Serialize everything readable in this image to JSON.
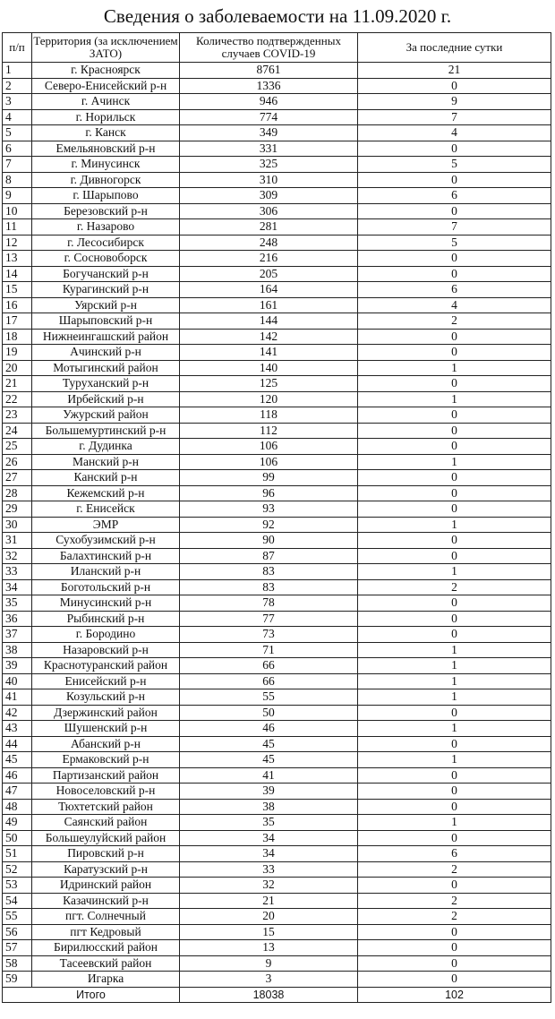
{
  "title": "Сведения о заболеваемости на 11.09.2020 г.",
  "headers": [
    "п/п",
    "Территория (за исключением ЗАТО)",
    "Количество подтвержденных случаев COVID-19",
    "За последние сутки"
  ],
  "rows": [
    [
      "1",
      "г. Красноярск",
      "8761",
      "21"
    ],
    [
      "2",
      "Северо-Енисейский р-н",
      "1336",
      "0"
    ],
    [
      "3",
      "г. Ачинск",
      "946",
      "9"
    ],
    [
      "4",
      "г. Норильск",
      "774",
      "7"
    ],
    [
      "5",
      "г. Канск",
      "349",
      "4"
    ],
    [
      "6",
      "Емельяновский р-н",
      "331",
      "0"
    ],
    [
      "7",
      "г. Минусинск",
      "325",
      "5"
    ],
    [
      "8",
      "г. Дивногорск",
      "310",
      "0"
    ],
    [
      "9",
      "г. Шарыпово",
      "309",
      "6"
    ],
    [
      "10",
      "Березовский р-н",
      "306",
      "0"
    ],
    [
      "11",
      "г. Назарово",
      "281",
      "7"
    ],
    [
      "12",
      "г. Лесосибирск",
      "248",
      "5"
    ],
    [
      "13",
      "г. Сосновоборск",
      "216",
      "0"
    ],
    [
      "14",
      "Богучанский р-н",
      "205",
      "0"
    ],
    [
      "15",
      "Курагинский р-н",
      "164",
      "6"
    ],
    [
      "16",
      "Уярский р-н",
      "161",
      "4"
    ],
    [
      "17",
      "Шарыповский р-н",
      "144",
      "2"
    ],
    [
      "18",
      "Нижнеингашский район",
      "142",
      "0"
    ],
    [
      "19",
      "Ачинский р-н",
      "141",
      "0"
    ],
    [
      "20",
      "Мотыгинский район",
      "140",
      "1"
    ],
    [
      "21",
      "Туруханский р-н",
      "125",
      "0"
    ],
    [
      "22",
      "Ирбейский р-н",
      "120",
      "1"
    ],
    [
      "23",
      "Ужурский район",
      "118",
      "0"
    ],
    [
      "24",
      "Большемуртинский р-н",
      "112",
      "0"
    ],
    [
      "25",
      "г. Дудинка",
      "106",
      "0"
    ],
    [
      "26",
      "Манский р-н",
      "106",
      "1"
    ],
    [
      "27",
      "Канский р-н",
      "99",
      "0"
    ],
    [
      "28",
      "Кежемский р-н",
      "96",
      "0"
    ],
    [
      "29",
      "г. Енисейск",
      "93",
      "0"
    ],
    [
      "30",
      "ЭМР",
      "92",
      "1"
    ],
    [
      "31",
      "Сухобузимский р-н",
      "90",
      "0"
    ],
    [
      "32",
      "Балахтинский р-н",
      "87",
      "0"
    ],
    [
      "33",
      "Иланский р-н",
      "83",
      "1"
    ],
    [
      "34",
      "Боготольский р-н",
      "83",
      "2"
    ],
    [
      "35",
      "Минусинский р-н",
      "78",
      "0"
    ],
    [
      "36",
      "Рыбинский р-н",
      "77",
      "0"
    ],
    [
      "37",
      "г. Бородино",
      "73",
      "0"
    ],
    [
      "38",
      "Назаровский р-н",
      "71",
      "1"
    ],
    [
      "39",
      "Краснотуранский район",
      "66",
      "1"
    ],
    [
      "40",
      "Енисейский р-н",
      "66",
      "1"
    ],
    [
      "41",
      "Козульский р-н",
      "55",
      "1"
    ],
    [
      "42",
      "Дзержинский район",
      "50",
      "0"
    ],
    [
      "43",
      "Шушенский р-н",
      "46",
      "1"
    ],
    [
      "44",
      "Абанский р-н",
      "45",
      "0"
    ],
    [
      "45",
      "Ермаковский р-н",
      "45",
      "1"
    ],
    [
      "46",
      "Партизанский район",
      "41",
      "0"
    ],
    [
      "47",
      "Новоселовский р-н",
      "39",
      "0"
    ],
    [
      "48",
      "Тюхтетский район",
      "38",
      "0"
    ],
    [
      "49",
      "Саянский район",
      "35",
      "1"
    ],
    [
      "50",
      "Большеулуйский район",
      "34",
      "0"
    ],
    [
      "51",
      "Пировский р-н",
      "34",
      "6"
    ],
    [
      "52",
      "Каратузский р-н",
      "33",
      "2"
    ],
    [
      "53",
      "Идринский район",
      "32",
      "0"
    ],
    [
      "54",
      "Казачинский р-н",
      "21",
      "2"
    ],
    [
      "55",
      "пгт. Солнечный",
      "20",
      "2"
    ],
    [
      "56",
      "пгт Кедровый",
      "15",
      "0"
    ],
    [
      "57",
      "Бирилюсский район",
      "13",
      "0"
    ],
    [
      "58",
      "Тасеевский район",
      "9",
      "0"
    ],
    [
      "59",
      "Игарка",
      "3",
      "0"
    ]
  ],
  "total": {
    "label": "Итого",
    "cases": "18038",
    "last_day": "102"
  }
}
